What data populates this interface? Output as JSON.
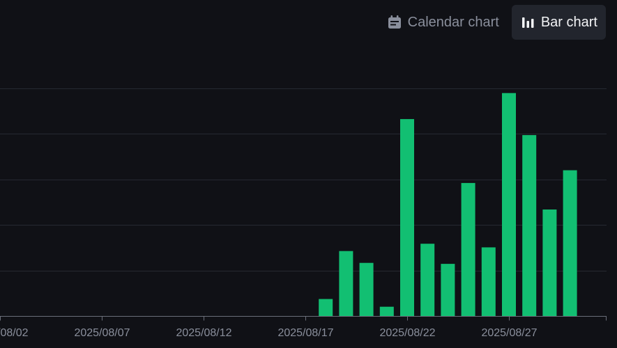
{
  "view_toggle": {
    "calendar_label": "Calendar chart",
    "bar_label": "Bar chart",
    "active": "bar"
  },
  "chart_data": {
    "type": "bar",
    "x_type": "date",
    "x_ticks": [
      "2025/08/02",
      "2025/08/07",
      "2025/08/12",
      "2025/08/17",
      "2025/08/22",
      "2025/08/27"
    ],
    "categories": [
      "2025/08/18",
      "2025/08/19",
      "2025/08/20",
      "2025/08/21",
      "2025/08/22",
      "2025/08/23",
      "2025/08/24",
      "2025/08/25",
      "2025/08/26",
      "2025/08/27",
      "2025/08/28",
      "2025/08/29",
      "2025/08/30"
    ],
    "values": [
      0.38,
      1.43,
      1.17,
      0.21,
      4.32,
      1.59,
      1.15,
      2.92,
      1.51,
      4.89,
      3.97,
      2.34,
      3.2
    ],
    "ylim": [
      0,
      5
    ],
    "grid": true,
    "bar_color": "#12bf72"
  }
}
